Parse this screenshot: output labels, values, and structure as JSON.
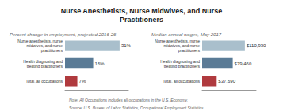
{
  "chart_data": [
    {
      "type": "bar",
      "title": "Nurse Anesthetists, Nurse Midwives, and Nurse\nPractitioners",
      "subtitle": "Percent change in employment, projected 2016-26",
      "categories": [
        "Nurse anesthetists, nurse\nmidwives, and nurse\npractitioners",
        "Health diagnosing and\ntreating practitioners",
        "Total, all occupations"
      ],
      "values": [
        31,
        16,
        7
      ],
      "value_labels": [
        "31%",
        "16%",
        "7%"
      ],
      "colors": [
        "#a9bfcc",
        "#5a7b96",
        "#b03a3e"
      ],
      "orientation": "horizontal",
      "xlim": [
        0,
        36
      ],
      "data_labels": true,
      "tick_labels": "y",
      "grid": false,
      "annotations": [
        "Note: All Occupations includes all occupations in the U.S. Economy.",
        "Source: U.S. Bureau of Labor Statistics, Occupational Employment Statistics."
      ]
    },
    {
      "type": "bar",
      "subtitle": "Median annual wages, May 2017",
      "categories": [
        "Nurse anesthetists, nurse\nmidwives, and nurse\npractitioners",
        "Health diagnosing and\ntreating practitioners",
        "Total, all occupations"
      ],
      "values": [
        110930,
        79460,
        37690
      ],
      "value_labels": [
        "$110,930",
        "$79,460",
        "$37,690"
      ],
      "colors": [
        "#a9bfcc",
        "#5a7b96",
        "#b03a3e"
      ],
      "orientation": "horizontal",
      "xlim": [
        0,
        140000
      ],
      "data_labels": true,
      "tick_labels": "y",
      "grid": false
    }
  ]
}
